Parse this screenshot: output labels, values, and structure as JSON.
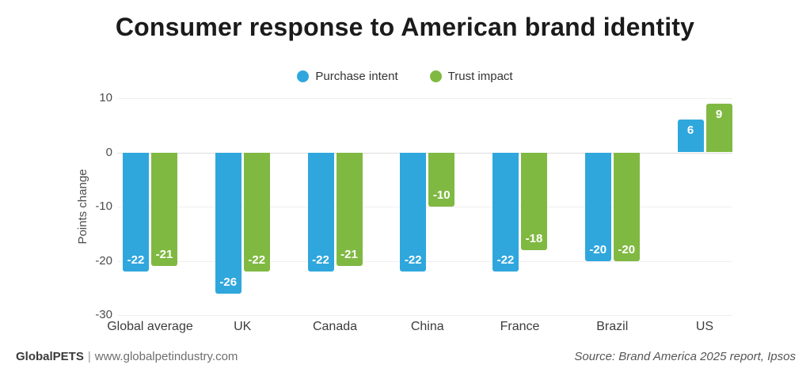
{
  "title": "Consumer response to American brand identity",
  "legend": [
    {
      "label": "Purchase intent",
      "color": "#2fa7dd"
    },
    {
      "label": "Trust impact",
      "color": "#80b942"
    }
  ],
  "chart_data": {
    "type": "bar",
    "categories": [
      "Global average",
      "UK",
      "Canada",
      "China",
      "France",
      "Brazil",
      "US"
    ],
    "series": [
      {
        "name": "Purchase intent",
        "color": "#2fa7dd",
        "values": [
          -22,
          -26,
          -22,
          -22,
          -22,
          -20,
          6
        ]
      },
      {
        "name": "Trust impact",
        "color": "#80b942",
        "values": [
          -21,
          -22,
          -21,
          -10,
          -18,
          -20,
          9
        ]
      }
    ],
    "ylabel": "Points change",
    "xlabel": "",
    "ylim": [
      -30,
      10
    ],
    "yticks": [
      10,
      0,
      -10,
      -20,
      -30
    ],
    "grid": true,
    "legend_position": "top",
    "bar_label_color": "#ffffff"
  },
  "footer": {
    "brand": "GlobalPETS",
    "separator": "|",
    "website": "www.globalpetindustry.com",
    "source": "Source: Brand America 2025 report, Ipsos"
  }
}
